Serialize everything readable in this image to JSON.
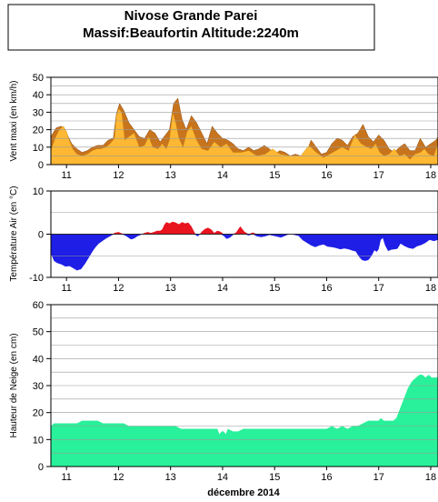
{
  "header": {
    "title_line1": "Nivose Grande Parei",
    "title_line2": "Massif:Beaufortin Altitude:2240m"
  },
  "chart_data": [
    {
      "type": "area",
      "id": "wind",
      "ylabel": "Vent maxi (en km/h)",
      "ylim": [
        0,
        50
      ],
      "yticks": [
        0,
        10,
        20,
        30,
        40,
        50
      ],
      "grid": true,
      "colors": {
        "series1": "#ffb833",
        "series2": "#c8741c"
      },
      "series": [
        {
          "x": [
            10.7,
            10.78,
            10.86,
            10.94,
            11.0,
            11.04,
            11.12,
            11.2,
            11.3,
            11.4,
            11.5,
            11.58,
            11.66,
            11.76,
            11.84,
            11.92,
            11.96,
            12.0,
            12.06,
            12.12,
            12.2,
            12.3,
            12.4,
            12.5,
            12.58,
            12.66,
            12.76,
            12.84,
            12.92,
            12.98,
            13.04,
            13.1,
            13.16,
            13.24,
            13.32,
            13.4,
            13.5,
            13.6,
            13.72,
            13.84,
            13.96,
            14.08,
            14.2,
            14.36,
            14.5,
            14.66,
            14.82,
            14.96,
            15.1,
            15.3,
            15.5,
            15.66,
            15.8,
            15.94,
            16.06,
            16.18,
            16.3,
            16.42,
            16.54,
            16.66,
            16.78,
            16.86,
            16.94,
            17.02,
            17.1,
            17.2,
            17.3,
            17.4,
            17.5,
            17.6,
            17.7,
            17.8,
            17.88,
            17.96,
            18.06,
            18.14
          ],
          "values": [
            8,
            15,
            20,
            22,
            19,
            15,
            9,
            6,
            5,
            6,
            8,
            9,
            9,
            10,
            12,
            15,
            28,
            32,
            30,
            14,
            16,
            18,
            10,
            11,
            16,
            10,
            9,
            12,
            9,
            14,
            30,
            24,
            15,
            10,
            19,
            22,
            14,
            9,
            8,
            13,
            10,
            12,
            7,
            7,
            8,
            5,
            6,
            9,
            6,
            5,
            5,
            11,
            7,
            4,
            6,
            8,
            10,
            8,
            17,
            12,
            10,
            9,
            12,
            7,
            5,
            6,
            9,
            5,
            6,
            3,
            6,
            7,
            9,
            6,
            5,
            12
          ]
        },
        {
          "x": [
            10.7,
            10.8,
            10.9,
            11.0,
            11.1,
            11.2,
            11.3,
            11.4,
            11.5,
            11.6,
            11.7,
            11.8,
            11.9,
            11.96,
            12.02,
            12.1,
            12.2,
            12.3,
            12.4,
            12.5,
            12.6,
            12.7,
            12.8,
            12.9,
            12.98,
            13.06,
            13.14,
            13.22,
            13.3,
            13.4,
            13.5,
            13.6,
            13.7,
            13.8,
            13.9,
            14.0,
            14.1,
            14.2,
            14.3,
            14.4,
            14.5,
            14.6,
            14.7,
            14.8,
            14.9,
            15.0,
            15.1,
            15.2,
            15.3,
            15.4,
            15.5,
            15.6,
            15.7,
            15.8,
            15.9,
            16.0,
            16.1,
            16.2,
            16.3,
            16.4,
            16.5,
            16.6,
            16.7,
            16.8,
            16.9,
            17.0,
            17.1,
            17.2,
            17.3,
            17.4,
            17.5,
            17.6,
            17.7,
            17.8,
            17.9,
            18.0,
            18.1,
            18.14
          ],
          "values": [
            16,
            21,
            22,
            18,
            12,
            9,
            7,
            8,
            10,
            11,
            11,
            14,
            15,
            29,
            35,
            31,
            24,
            20,
            16,
            15,
            20,
            18,
            13,
            17,
            20,
            35,
            38,
            26,
            20,
            28,
            24,
            18,
            12,
            22,
            18,
            15,
            14,
            12,
            9,
            8,
            10,
            8,
            9,
            11,
            9,
            6,
            8,
            7,
            5,
            6,
            5,
            6,
            14,
            10,
            6,
            7,
            12,
            15,
            14,
            11,
            16,
            18,
            23,
            16,
            13,
            17,
            14,
            9,
            7,
            10,
            12,
            8,
            8,
            15,
            10,
            12,
            14,
            16
          ]
        }
      ]
    },
    {
      "type": "area",
      "id": "temperature",
      "ylabel": "Température Air (en °C)",
      "ylim": [
        -10,
        10
      ],
      "yticks": [
        -10,
        0,
        10
      ],
      "grid": true,
      "colors": {
        "positive": "#e8141e",
        "negative": "#1e1ee6"
      },
      "x": [
        10.7,
        10.76,
        10.82,
        10.9,
        10.98,
        11.06,
        11.12,
        11.2,
        11.28,
        11.36,
        11.44,
        11.5,
        11.56,
        11.62,
        11.7,
        11.76,
        11.82,
        11.88,
        11.92,
        11.96,
        12.0,
        12.06,
        12.14,
        12.2,
        12.24,
        12.3,
        12.36,
        12.44,
        12.5,
        12.56,
        12.62,
        12.68,
        12.74,
        12.8,
        12.84,
        12.88,
        12.92,
        12.98,
        13.04,
        13.1,
        13.16,
        13.22,
        13.28,
        13.34,
        13.4,
        13.44,
        13.48,
        13.52,
        13.56,
        13.6,
        13.66,
        13.72,
        13.78,
        13.84,
        13.9,
        13.96,
        14.02,
        14.08,
        14.14,
        14.2,
        14.26,
        14.34,
        14.42,
        14.5,
        14.58,
        14.66,
        14.74,
        14.82,
        14.9,
        14.98,
        15.06,
        15.12,
        15.18,
        15.24,
        15.3,
        15.38,
        15.46,
        15.54,
        15.62,
        15.7,
        15.78,
        15.86,
        15.94,
        16.02,
        16.1,
        16.18,
        16.26,
        16.34,
        16.42,
        16.5,
        16.56,
        16.62,
        16.68,
        16.74,
        16.8,
        16.86,
        16.92,
        16.96,
        17.0,
        17.04,
        17.08,
        17.12,
        17.18,
        17.24,
        17.3,
        17.36,
        17.42,
        17.5,
        17.58,
        17.66,
        17.74,
        17.82,
        17.9,
        17.98,
        18.06,
        18.14
      ],
      "values": [
        -4.5,
        -6.2,
        -6.7,
        -7.0,
        -7.5,
        -7.4,
        -7.8,
        -8.4,
        -8.1,
        -6.8,
        -5.2,
        -4.0,
        -3.0,
        -2.2,
        -1.5,
        -1.0,
        -0.6,
        -0.2,
        0.3,
        0.4,
        0.5,
        0.2,
        -0.4,
        -0.9,
        -1.2,
        -1.0,
        -0.5,
        -0.1,
        0.3,
        0.5,
        0.3,
        0.5,
        0.8,
        0.8,
        1.1,
        2.2,
        2.8,
        2.5,
        2.9,
        2.7,
        2.3,
        2.8,
        2.5,
        2.7,
        1.8,
        0.9,
        -0.2,
        -0.5,
        -0.1,
        0.6,
        1.2,
        1.5,
        1.1,
        0.3,
        0.8,
        0.6,
        -0.4,
        -1.1,
        -0.8,
        -0.2,
        0.4,
        1.8,
        0.6,
        -0.3,
        0.4,
        -0.5,
        -0.7,
        -0.5,
        -0.2,
        -0.4,
        -0.6,
        -0.8,
        -0.5,
        -0.2,
        0.0,
        -0.2,
        -0.4,
        -1.4,
        -2.0,
        -2.6,
        -3.0,
        -2.6,
        -2.4,
        -2.9,
        -3.0,
        -3.2,
        -3.5,
        -3.3,
        -3.5,
        -3.8,
        -4.0,
        -5.2,
        -6.0,
        -6.2,
        -6.0,
        -5.1,
        -3.7,
        -4.1,
        -3.5,
        -1.3,
        -0.9,
        -2.5,
        -3.9,
        -3.6,
        -3.5,
        -3.4,
        -2.2,
        -2.8,
        -3.2,
        -3.4,
        -2.8,
        -2.5,
        -2.0,
        -1.3,
        -1.6,
        -1.3
      ]
    },
    {
      "type": "area",
      "id": "snow",
      "ylabel": "Hauteur de Neige (en cm)",
      "xlabel": "décembre 2014",
      "ylim": [
        0,
        60
      ],
      "yticks": [
        0,
        10,
        20,
        30,
        40,
        50,
        60
      ],
      "grid": true,
      "colors": {
        "fill": "#29f09a"
      },
      "x": [
        10.7,
        10.76,
        10.82,
        10.9,
        11.0,
        11.1,
        11.2,
        11.3,
        11.4,
        11.5,
        11.6,
        11.7,
        11.8,
        11.9,
        12.0,
        12.1,
        12.2,
        12.3,
        12.4,
        12.5,
        12.6,
        12.7,
        12.8,
        12.9,
        13.0,
        13.1,
        13.2,
        13.3,
        13.4,
        13.5,
        13.6,
        13.7,
        13.8,
        13.9,
        13.94,
        13.98,
        14.02,
        14.06,
        14.1,
        14.2,
        14.3,
        14.4,
        14.5,
        14.6,
        14.7,
        14.8,
        14.9,
        15.0,
        15.1,
        15.2,
        15.3,
        15.4,
        15.5,
        15.6,
        15.7,
        15.8,
        15.9,
        16.0,
        16.1,
        16.2,
        16.3,
        16.4,
        16.5,
        16.6,
        16.7,
        16.8,
        16.9,
        17.0,
        17.04,
        17.1,
        17.16,
        17.22,
        17.28,
        17.34,
        17.4,
        17.46,
        17.5,
        17.56,
        17.62,
        17.66,
        17.72,
        17.78,
        17.84,
        17.9,
        17.96,
        18.02,
        18.08,
        18.14
      ],
      "values": [
        15,
        16,
        16,
        16,
        16,
        16,
        16,
        17,
        17,
        17,
        17,
        16,
        16,
        16,
        16,
        16,
        15,
        15,
        15,
        15,
        15,
        15,
        15,
        15,
        15,
        15,
        14,
        14,
        14,
        14,
        14,
        14,
        14,
        14,
        12,
        13,
        13,
        12,
        14,
        13,
        13,
        14,
        14,
        14,
        14,
        14,
        14,
        14,
        14,
        14,
        14,
        14,
        14,
        14,
        14,
        14,
        14,
        14,
        15,
        14,
        15,
        14,
        15,
        15,
        16,
        17,
        17,
        17,
        18,
        17,
        17,
        17,
        17,
        18,
        21,
        24,
        26,
        29,
        31,
        32,
        33,
        34,
        34,
        33,
        34,
        33,
        33,
        33
      ]
    }
  ],
  "x_axis": {
    "ticks": [
      11,
      12,
      13,
      14,
      15,
      16,
      17,
      18
    ],
    "tick_labels": [
      "11",
      "12",
      "13",
      "14",
      "15",
      "16",
      "17",
      "18"
    ],
    "xlim": [
      10.7,
      18.14
    ],
    "xlabel": "décembre 2014"
  }
}
